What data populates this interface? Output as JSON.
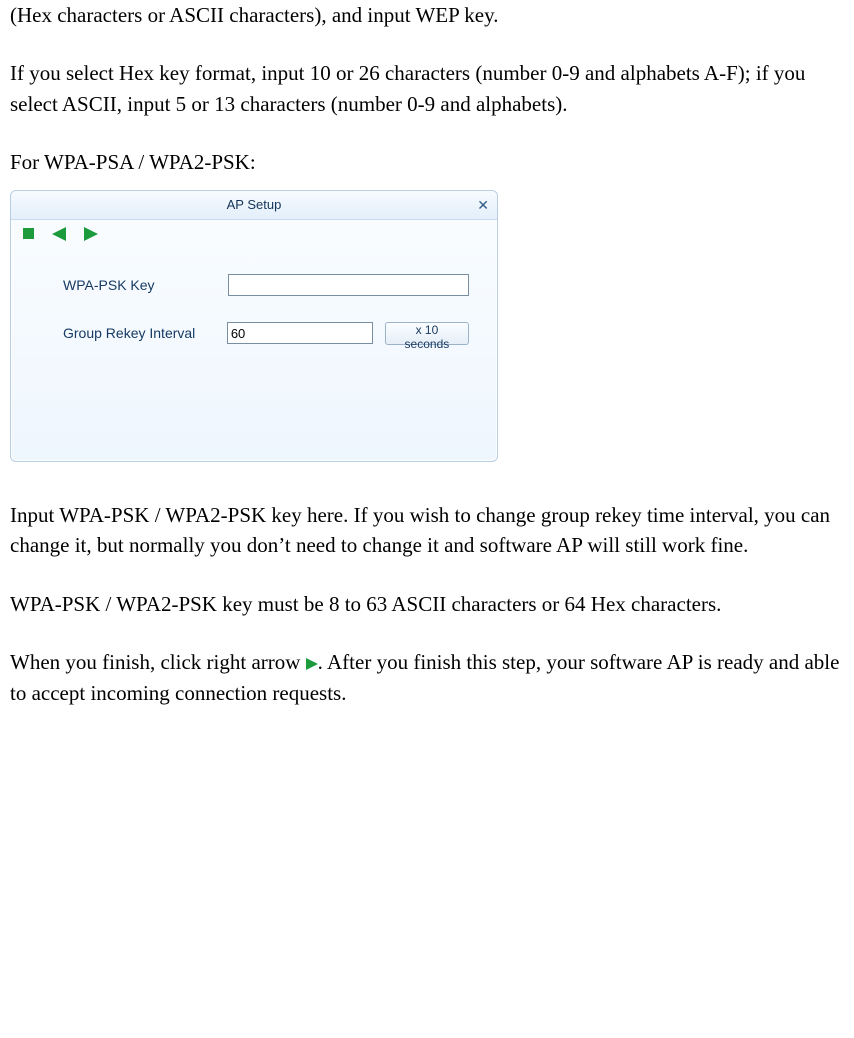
{
  "para1": "(Hex characters or ASCII characters), and input WEP key.",
  "para2": "If you select Hex key format, input 10 or 26 characters (number 0-9 and alphabets A-F); if you select ASCII, input 5 or 13 characters (number 0-9 and alphabets).",
  "para3": "For WPA-PSA / WPA2-PSK:",
  "dialog": {
    "title": "AP Setup",
    "wpa_label": "WPA-PSK Key",
    "wpa_value": "",
    "rekey_label": "Group Rekey Interval",
    "rekey_value": "60",
    "unit_label": "x 10 seconds",
    "colors": {
      "border": "#b8cde2",
      "bg_top": "#fafdff",
      "bg_bottom": "#eef6fe",
      "titlebar_top": "#f7fbff",
      "titlebar_bottom": "#e3effa",
      "text": "#1a385a",
      "arrow_green": "#1b9b3c",
      "input_border": "#7a8ea3"
    }
  },
  "para4": "Input WPA-PSK / WPA2-PSK key here. If you wish to change group rekey time interval, you can change it, but normally you don’t need to change it and software AP will still work fine.",
  "para5": "WPA-PSK / WPA2-PSK key must be 8 to 63 ASCII characters or 64 Hex characters.",
  "para6a": "When you finish, click right arrow  ",
  "para6b": ". After you finish this step, your software AP is ready and able to accept incoming connection requests."
}
